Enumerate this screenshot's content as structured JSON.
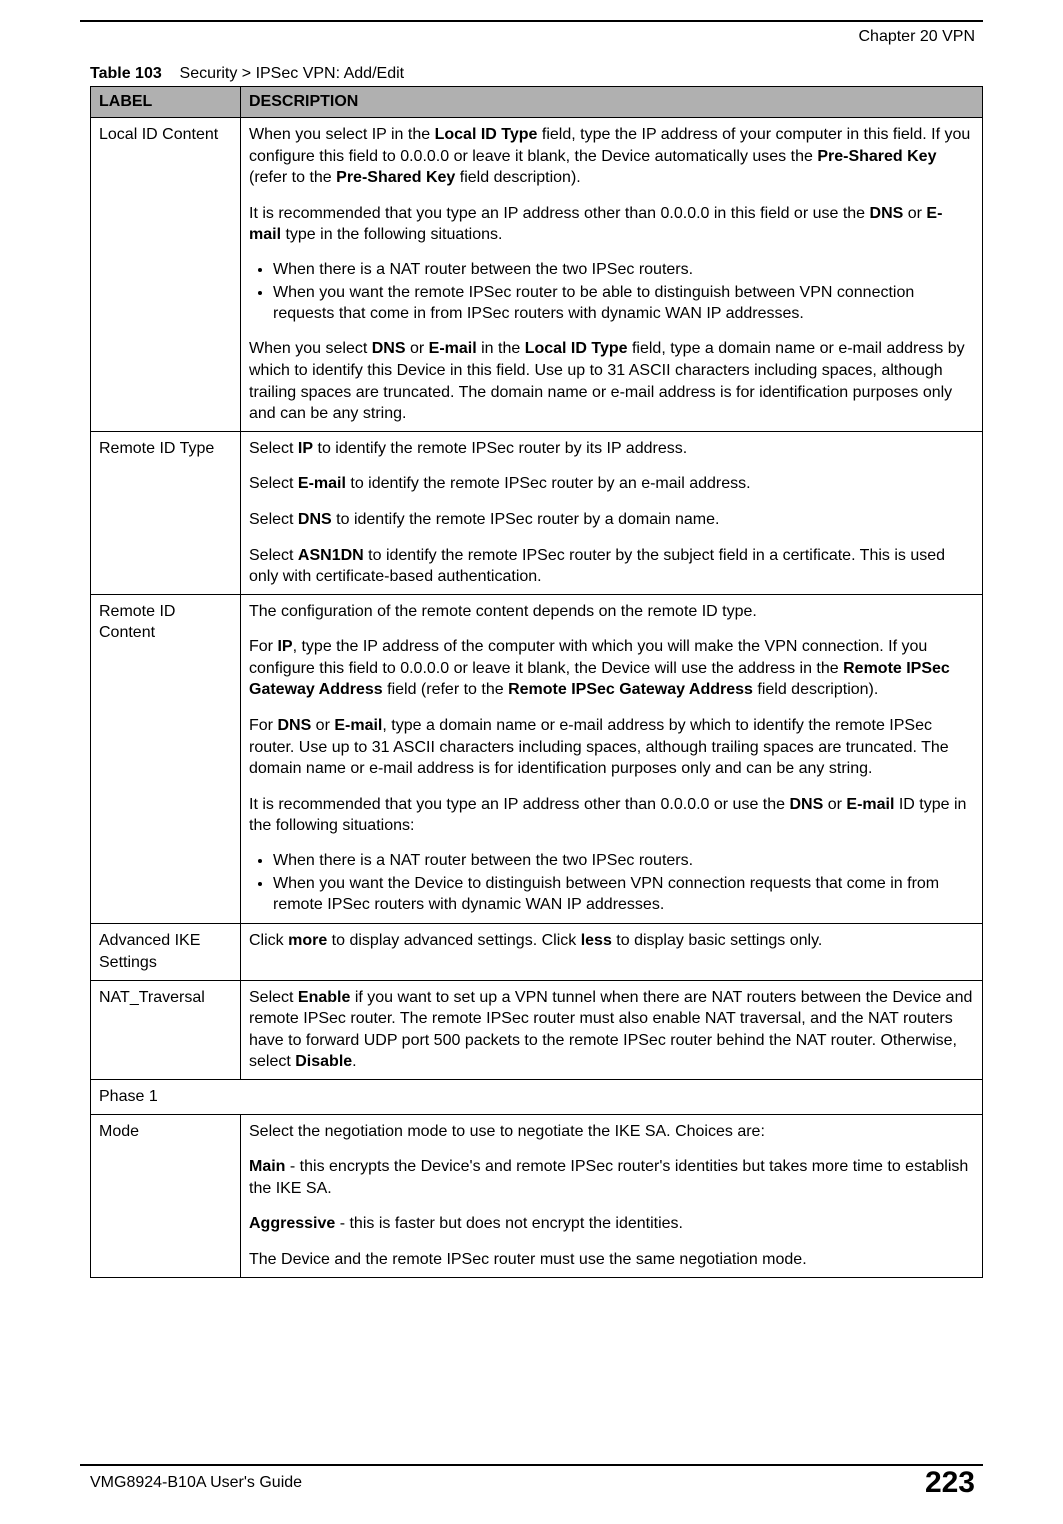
{
  "running_head": "Chapter 20 VPN",
  "caption_label": "Table 103",
  "caption_text": "Security > IPSec VPN: Add/Edit",
  "columns": {
    "label": "LABEL",
    "description": "DESCRIPTION"
  },
  "rows": {
    "local_id_content": {
      "label": "Local ID Content",
      "p1_1": "When you select IP in the ",
      "p1_b1": "Local ID Type",
      "p1_2": " field, type the IP address of your computer in this field. If you configure this field to 0.0.0.0 or leave it blank, the Device automatically uses the ",
      "p1_b2": "Pre-Shared Key",
      "p1_3": " (refer to the ",
      "p1_b3": "Pre-Shared Key",
      "p1_4": " field description).",
      "p2_1": "It is recommended that you type an IP address other than 0.0.0.0 in this field or use the ",
      "p2_b1": "DNS",
      "p2_2": " or ",
      "p2_b2": "E-mail",
      "p2_3": " type in the following situations.",
      "bul1": "When there is a NAT router between the two IPSec routers.",
      "bul2": "When you want the remote IPSec router to be able to distinguish between VPN connection requests that come in from IPSec routers with dynamic WAN IP addresses.",
      "p3_1": "When you select ",
      "p3_b1": "DNS",
      "p3_2": " or ",
      "p3_b2": "E-mail",
      "p3_3": " in the ",
      "p3_b3": "Local ID Type",
      "p3_4": " field, type a domain name or e-mail address by which to identify this Device in this field. Use up to 31 ASCII characters including spaces, although trailing spaces are truncated. The domain name or e-mail address is for identification purposes only and can be any string."
    },
    "remote_id_type": {
      "label": "Remote ID Type",
      "p1_1": "Select ",
      "p1_b1": "IP",
      "p1_2": " to identify the remote IPSec router by its IP address.",
      "p2_1": "Select ",
      "p2_b1": "E-mail",
      "p2_2": " to identify the remote IPSec router by an e-mail address.",
      "p3_1": "Select ",
      "p3_b1": "DNS",
      "p3_2": " to identify the remote IPSec router by a domain name.",
      "p4_1": "Select ",
      "p4_b1": "ASN1DN",
      "p4_2": " to identify the remote IPSec router by the subject field in a certificate. This is used only with certificate-based authentication."
    },
    "remote_id_content": {
      "label": "Remote ID Content",
      "p1": "The configuration of the remote content depends on the remote ID type.",
      "p2_1": "For ",
      "p2_b1": "IP",
      "p2_2": ", type the IP address of the computer with which you will make the VPN connection. If you configure this field to 0.0.0.0 or leave it blank, the Device will use the address in the ",
      "p2_b2": "Remote IPSec Gateway Address",
      "p2_3": " field (refer to the ",
      "p2_b3": "Remote IPSec Gateway Address",
      "p2_4": " field description).",
      "p3_1": "For ",
      "p3_b1": "DNS",
      "p3_2": " or ",
      "p3_b2": "E-mail",
      "p3_3": ", type a domain name or e-mail address by which to identify the remote IPSec router. Use up to 31 ASCII characters including spaces, although trailing spaces are truncated. The domain name or e-mail address is for identification purposes only and can be any string.",
      "p4_1": "It is recommended that you type an IP address other than 0.0.0.0 or use the ",
      "p4_b1": "DNS",
      "p4_2": " or ",
      "p4_b2": "E-mail",
      "p4_3": " ID type in the following situations:",
      "bul1": "When there is a NAT router between the two IPSec routers.",
      "bul2": "When you want the Device to distinguish between VPN connection requests that come in from remote IPSec routers with dynamic WAN IP addresses."
    },
    "advanced_ike": {
      "label": "Advanced IKE Settings",
      "p1_1": "Click ",
      "p1_b1": "more",
      "p1_2": " to display advanced settings. Click ",
      "p1_b2": "less",
      "p1_3": " to display basic settings only."
    },
    "nat_traversal": {
      "label": "NAT_Traversal",
      "p1_1": "Select ",
      "p1_b1": "Enable",
      "p1_2": " if you want to set up a VPN tunnel when there are NAT routers between the Device and remote IPSec router. The remote IPSec router must also enable NAT traversal, and the NAT routers have to forward UDP port 500 packets to the remote IPSec router behind the NAT router. Otherwise, select ",
      "p1_b2": "Disable",
      "p1_3": "."
    },
    "phase1": {
      "label": "Phase 1"
    },
    "mode": {
      "label": "Mode",
      "p1": "Select the negotiation mode to use to negotiate the IKE SA. Choices are:",
      "p2_b1": "Main",
      "p2_1": " - this encrypts the Device's and remote IPSec router's identities but takes more time to establish the IKE SA.",
      "p3_b1": "Aggressive",
      "p3_1": " - this is faster but does not encrypt the identities.",
      "p4": "The Device and the remote IPSec router must use the same negotiation mode."
    }
  },
  "footer": {
    "guide": "VMG8924-B10A User's Guide",
    "page": "223"
  }
}
